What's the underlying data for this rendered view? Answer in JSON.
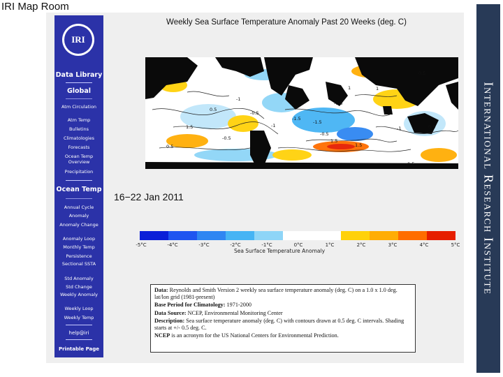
{
  "header": {
    "title": "IRI Map Room"
  },
  "brand": {
    "text": "International Research Institute"
  },
  "sidebar": {
    "logo": "IRI",
    "data_library": "Data Library",
    "global_heading": "Global",
    "global_items": [
      "Atm Circulation",
      "Atm Temp",
      "Bulletins",
      "Climatologies",
      "Forecasts",
      "Ocean Temp Overview",
      "Precipitation"
    ],
    "ocean_heading": "Ocean Temp",
    "ocean_items": [
      "Annual Cycle",
      "Anomaly",
      "Anomaly Change",
      "Anomaly Loop",
      "Monthly Temp",
      "Persistence",
      "Sectional SSTA",
      "Std Anomaly",
      "Std Change",
      "Weekly Anomaly",
      "Weekly Loop",
      "Weekly Temp"
    ],
    "help": "help@iri",
    "printable": "Printable Page"
  },
  "main": {
    "title": "Weekly Sea Surface Temperature Anomaly Past 20 Weeks (deg. C)",
    "date_range": "16−22 Jan 2011",
    "colorbar": {
      "ticks": [
        "-5°C",
        "-4°C",
        "-3°C",
        "-2°C",
        "-1°C",
        "0°C",
        "1°C",
        "2°C",
        "3°C",
        "4°C",
        "5°C"
      ],
      "label": "Sea Surface Temperature Anomaly",
      "colors": [
        "#0b1fd8",
        "#1f55f0",
        "#2f86f2",
        "#46b4f4",
        "#8ed5f7",
        "#ffffff",
        "#ffffff",
        "#ffd10a",
        "#ffad05",
        "#ff6d00",
        "#e61e00"
      ]
    },
    "map_contour_labels": [
      "0.5",
      "-1",
      "-0.5",
      "-1.5",
      "1.5",
      "1",
      "0.5",
      "-1",
      "-1.5",
      "0.5",
      "1.5",
      "-0.5",
      "0.5",
      "1",
      "-1",
      "0.5",
      "-1.5",
      "1.5",
      "-0.5"
    ]
  },
  "info": {
    "data_label": "Data:",
    "data_text": "Reynolds and Smith Version 2 weekly sea surface temperature anomaly (deg. C) on a 1.0 x 1.0 deg. lat/lon grid (1981-present)",
    "base_label": "Base Period for Climatology:",
    "base_text": "1971-2000",
    "source_label": "Data Source:",
    "source_text": "NCEP, Environmental Monitoring Center",
    "desc_label": "Description:",
    "desc_text": "Sea surface temperature anomaly (deg. C) with contours drawn at 0.5 deg. C intervals. Shading starts at +/- 0.5 deg. C.",
    "note_label": "NCEP",
    "note_text": "is an acronym for the US National Centers for Environmental Prediction."
  }
}
